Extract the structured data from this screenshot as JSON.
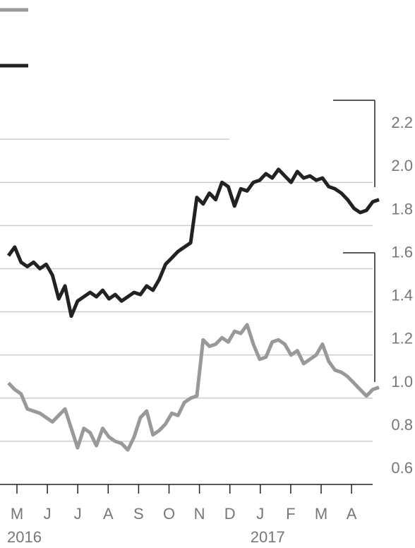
{
  "chart_data": {
    "type": "line",
    "x_tick_labels": [
      "M",
      "J",
      "J",
      "A",
      "S",
      "O",
      "N",
      "D",
      "J",
      "F",
      "M",
      "A"
    ],
    "year_labels": [
      "2016",
      null,
      null,
      null,
      null,
      null,
      null,
      null,
      "2017",
      null,
      null,
      null
    ],
    "ylim": [
      0.6,
      2.4
    ],
    "yticks": [
      {
        "value": 0.6,
        "label": "0.6"
      },
      {
        "value": 0.8,
        "label": "0.8"
      },
      {
        "value": 1.0,
        "label": "1.0"
      },
      {
        "value": 1.2,
        "label": "1.2"
      },
      {
        "value": 1.4,
        "label": "1.4"
      },
      {
        "value": 1.6,
        "label": "1.6"
      },
      {
        "value": 1.8,
        "label": "1.8"
      },
      {
        "value": 2.0,
        "label": "2.0"
      },
      {
        "value": 2.2,
        "label": "2.2"
      }
    ],
    "grid": true,
    "series": [
      {
        "color": "#999999",
        "values": [
          1.07,
          1.04,
          1.02,
          0.95,
          0.94,
          0.93,
          0.91,
          0.89,
          0.92,
          0.95,
          0.86,
          0.77,
          0.86,
          0.84,
          0.78,
          0.86,
          0.82,
          0.8,
          0.79,
          0.76,
          0.82,
          0.91,
          0.94,
          0.83,
          0.85,
          0.88,
          0.93,
          0.92,
          0.98,
          1.0,
          1.01,
          1.27,
          1.24,
          1.25,
          1.28,
          1.26,
          1.31,
          1.3,
          1.34,
          1.25,
          1.18,
          1.19,
          1.26,
          1.27,
          1.25,
          1.2,
          1.22,
          1.16,
          1.18,
          1.2,
          1.25,
          1.17,
          1.13,
          1.12,
          1.1,
          1.07,
          1.04,
          1.01,
          1.04,
          1.05
        ]
      },
      {
        "color": "#222222",
        "values": [
          1.66,
          1.7,
          1.63,
          1.61,
          1.63,
          1.6,
          1.62,
          1.57,
          1.46,
          1.52,
          1.38,
          1.45,
          1.47,
          1.49,
          1.47,
          1.5,
          1.46,
          1.48,
          1.45,
          1.47,
          1.49,
          1.48,
          1.52,
          1.5,
          1.55,
          1.62,
          1.65,
          1.68,
          1.7,
          1.72,
          1.93,
          1.9,
          1.95,
          1.92,
          2.0,
          1.98,
          1.89,
          1.97,
          1.96,
          2.0,
          2.01,
          2.04,
          2.02,
          2.06,
          2.03,
          2.0,
          2.05,
          2.02,
          2.03,
          2.01,
          2.02,
          1.98,
          1.97,
          1.95,
          1.92,
          1.88,
          1.86,
          1.87,
          1.91,
          1.92
        ]
      }
    ]
  }
}
